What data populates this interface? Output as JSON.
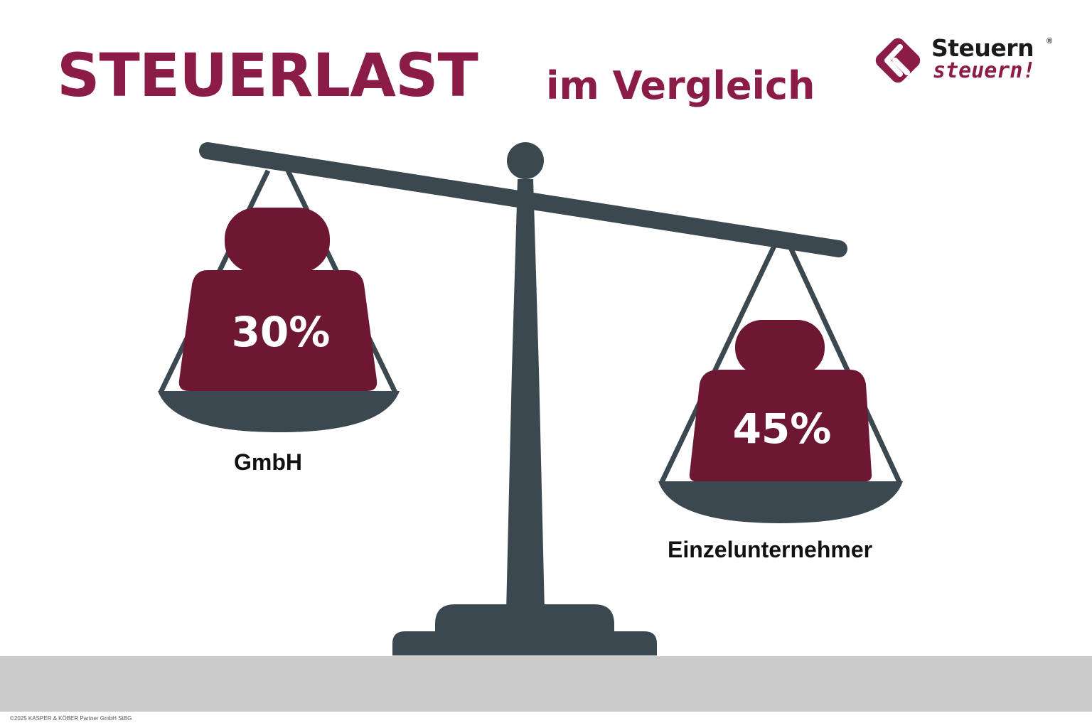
{
  "title": {
    "main": "STEUERLAST",
    "sub": "im Vergleich"
  },
  "logo": {
    "line1": "Steuern",
    "registered": "®",
    "line2": "steuern!",
    "icon": "diamond-k-logo-icon"
  },
  "left_pan": {
    "value": "30%",
    "label": "GmbH"
  },
  "right_pan": {
    "value": "45%",
    "label": "Einzelunternehmer"
  },
  "footer": {
    "copyright": "©2025 KASPER & KÖBER Partner GmbH StBG"
  },
  "colors": {
    "brand": "#8b1c47",
    "weight": "#6e1733",
    "scale": "#3c4850",
    "ground": "#cbcbcb"
  }
}
